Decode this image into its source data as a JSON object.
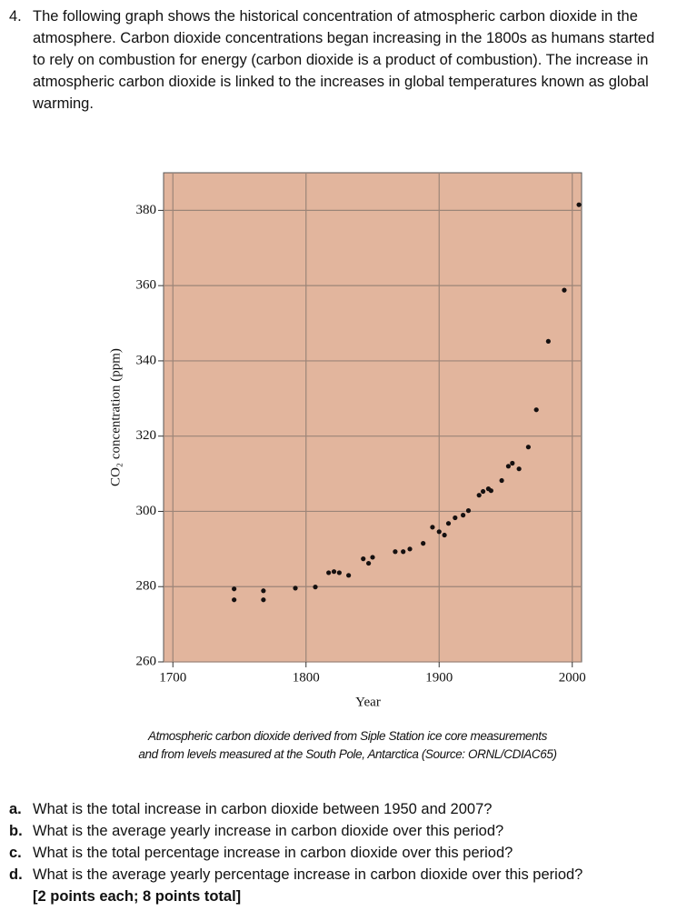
{
  "question": {
    "number": "4.",
    "text": "The following graph shows the historical concentration of atmospheric carbon dioxide in the atmosphere. Carbon dioxide concentrations began increasing in the 1800s as humans started to rely on combustion for energy (carbon dioxide is a product of combustion). The increase in atmospheric carbon dioxide is linked to the increases in global temperatures known as global warming."
  },
  "chart_data": {
    "type": "scatter",
    "x_label": "Year",
    "y_label": "CO₂ concentration (ppm)",
    "x": [
      1746,
      1746,
      1768,
      1768,
      1792,
      1807,
      1817,
      1821,
      1825,
      1832,
      1843,
      1847,
      1850,
      1867,
      1873,
      1878,
      1888,
      1895,
      1900,
      1904,
      1907,
      1912,
      1918,
      1922,
      1930,
      1933,
      1937,
      1939,
      1947,
      1952,
      1955,
      1960,
      1967,
      1973,
      1982,
      1994,
      2005
    ],
    "values": [
      279.4,
      276.5,
      278.9,
      276.5,
      279.6,
      279.9,
      283.7,
      284,
      283.7,
      283,
      287.4,
      286.2,
      287.8,
      289.3,
      289.3,
      290,
      291.5,
      295.8,
      294.6,
      293.7,
      296.8,
      298.3,
      299,
      300.2,
      304.3,
      305.3,
      306,
      305.5,
      308.2,
      312,
      312.8,
      311.3,
      317.1,
      327,
      345.2,
      358.8,
      381.5
    ],
    "color": "#151010",
    "background": "#e2b59d",
    "grid": true,
    "xlim": [
      1693,
      2007
    ],
    "xticks": [
      1700,
      1800,
      1900,
      2000
    ],
    "ylim": [
      260,
      390
    ],
    "yticks": [
      260,
      280,
      300,
      320,
      340,
      360,
      380
    ]
  },
  "caption": [
    "Atmospheric carbon dioxide derived from Siple Station ice core measurements",
    "and from levels measured at the South Pole, Antarctica (Source: ORNL/CDIAC65)"
  ],
  "parts": [
    {
      "label": "a.",
      "text": "What is the total increase in carbon dioxide between 1950 and 2007?"
    },
    {
      "label": "b.",
      "text": "What is the average yearly increase in carbon dioxide over this period?"
    },
    {
      "label": "c.",
      "text": "What is the total percentage increase in carbon dioxide over this period?"
    },
    {
      "label": "d.",
      "text": "What is the average yearly percentage increase in carbon dioxide over this period?"
    }
  ],
  "points": "[2 points each; 8 points total]"
}
